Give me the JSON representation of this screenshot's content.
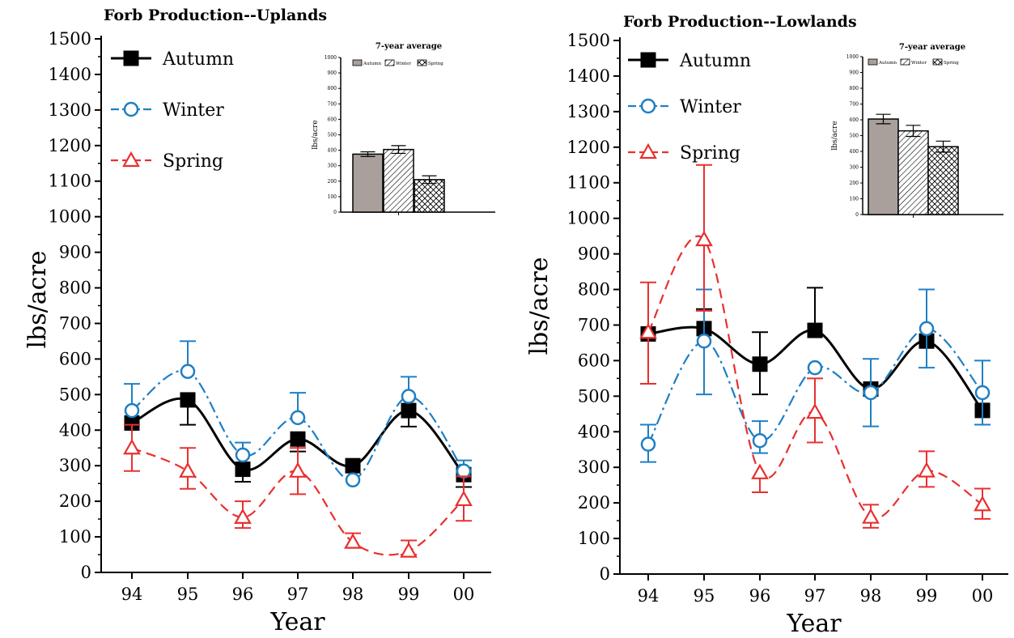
{
  "chart_data": [
    {
      "type": "line",
      "title": "Forb Production--Uplands",
      "xlabel": "Year",
      "ylabel": "lbs/acre",
      "ylim": [
        0,
        1500
      ],
      "yticks": [
        0,
        100,
        200,
        300,
        400,
        500,
        600,
        700,
        800,
        900,
        1000,
        1100,
        1200,
        1300,
        1400,
        1500
      ],
      "categories": [
        "94",
        "95",
        "96",
        "97",
        "98",
        "99",
        "00"
      ],
      "legend_position": "top-left",
      "series": [
        {
          "name": "Autumn",
          "color": "#000000",
          "marker": "square",
          "line": "solid",
          "values": [
            420,
            485,
            290,
            375,
            300,
            455,
            275
          ],
          "error": [
            [
              null,
              null
            ],
            [
              415,
              null
            ],
            [
              255,
              null
            ],
            [
              340,
              null
            ],
            [
              null,
              null
            ],
            [
              410,
              null
            ],
            [
              240,
              null
            ]
          ]
        },
        {
          "name": "Winter",
          "color": "#1f7fc4",
          "marker": "circle",
          "line": "dashdot",
          "values": [
            455,
            565,
            330,
            435,
            260,
            495,
            285
          ],
          "error": [
            [
              null,
              530
            ],
            [
              null,
              650
            ],
            [
              null,
              365
            ],
            [
              null,
              505
            ],
            [
              null,
              null
            ],
            [
              null,
              550
            ],
            [
              null,
              315
            ]
          ]
        },
        {
          "name": "Spring",
          "color": "#e8302f",
          "marker": "triangle",
          "line": "dashed",
          "values": [
            350,
            285,
            155,
            285,
            85,
            60,
            205
          ],
          "error": [
            [
              285,
              415
            ],
            [
              235,
              350
            ],
            [
              125,
              200
            ],
            [
              220,
              350
            ],
            [
              70,
              110
            ],
            [
              50,
              90
            ],
            [
              145,
              270
            ]
          ]
        }
      ],
      "inset": {
        "title": "7-year average",
        "ylabel": "lbs/acre",
        "ylim": [
          0,
          1000
        ],
        "categories": [
          "Autumn",
          "Winter",
          "Spring"
        ],
        "values": [
          375,
          405,
          210
        ],
        "error": [
          15,
          25,
          25
        ]
      }
    },
    {
      "type": "line",
      "title": "Forb  Production--Lowlands",
      "xlabel": "Year",
      "ylabel": "lbs/acre",
      "ylim": [
        0,
        1500
      ],
      "yticks": [
        0,
        100,
        200,
        300,
        400,
        500,
        600,
        700,
        800,
        900,
        1000,
        1100,
        1200,
        1300,
        1400,
        1500
      ],
      "categories": [
        "94",
        "95",
        "96",
        "97",
        "98",
        "99",
        "00"
      ],
      "legend_position": "top-left",
      "series": [
        {
          "name": "Autumn",
          "color": "#000000",
          "marker": "square",
          "line": "solid",
          "values": [
            675,
            690,
            590,
            685,
            520,
            655,
            460
          ],
          "error": [
            [
              null,
              null
            ],
            [
              null,
              745
            ],
            [
              505,
              680
            ],
            [
              null,
              805
            ],
            [
              null,
              null
            ],
            [
              null,
              null
            ],
            [
              null,
              null
            ]
          ]
        },
        {
          "name": "Winter",
          "color": "#1f7fc4",
          "marker": "circle",
          "line": "dashdot",
          "values": [
            365,
            655,
            375,
            580,
            510,
            690,
            510
          ],
          "error": [
            [
              315,
              420
            ],
            [
              505,
              800
            ],
            [
              340,
              430
            ],
            [
              null,
              null
            ],
            [
              415,
              605
            ],
            [
              580,
              800
            ],
            [
              420,
              600
            ]
          ]
        },
        {
          "name": "Spring",
          "color": "#e8302f",
          "marker": "triangle",
          "line": "dashed",
          "values": [
            680,
            940,
            285,
            455,
            160,
            290,
            195
          ],
          "error": [
            [
              535,
              820
            ],
            [
              740,
              1150
            ],
            [
              230,
              null
            ],
            [
              370,
              550
            ],
            [
              130,
              195
            ],
            [
              245,
              345
            ],
            [
              155,
              240
            ]
          ]
        }
      ],
      "inset": {
        "title": "7-year average",
        "ylabel": "lbs/acre",
        "ylim": [
          0,
          1000
        ],
        "categories": [
          "Autumn",
          "Winter",
          "Spring"
        ],
        "values": [
          605,
          530,
          430
        ],
        "error": [
          30,
          35,
          35
        ]
      }
    }
  ]
}
